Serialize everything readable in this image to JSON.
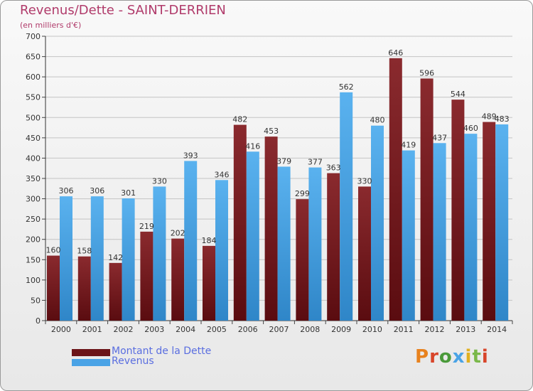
{
  "title": "Revenus/Dette - SAINT-DERRIEN",
  "subtitle": "(en milliers d'€)",
  "colors": {
    "dette": "#7a1e22",
    "revenus": "#4aa3e6",
    "title": "#b03a6a",
    "legend_text": "#5a6ee0"
  },
  "legend": [
    {
      "label": "Montant de la Dette",
      "color": "#7a1e22"
    },
    {
      "label": "Revenus",
      "color": "#4aa3e6"
    }
  ],
  "logo": {
    "text": "Proxiti"
  },
  "chart_data": {
    "type": "bar",
    "title": "Revenus/Dette - SAINT-DERRIEN",
    "subtitle": "(en milliers d'€)",
    "categories": [
      "2000",
      "2001",
      "2002",
      "2003",
      "2004",
      "2005",
      "2006",
      "2007",
      "2008",
      "2009",
      "2010",
      "2011",
      "2012",
      "2013",
      "2014"
    ],
    "series": [
      {
        "name": "Montant de la Dette",
        "values": [
          160,
          158,
          142,
          219,
          202,
          184,
          482,
          453,
          299,
          363,
          330,
          646,
          596,
          544,
          489
        ]
      },
      {
        "name": "Revenus",
        "values": [
          306,
          306,
          301,
          330,
          393,
          346,
          416,
          379,
          377,
          562,
          480,
          419,
          437,
          460,
          483
        ]
      }
    ],
    "ylim": [
      0,
      700
    ],
    "yticks": [
      0,
      50,
      100,
      150,
      200,
      250,
      300,
      350,
      400,
      450,
      500,
      550,
      600,
      650,
      700
    ],
    "grid": true,
    "legend_position": "bottom-left"
  }
}
